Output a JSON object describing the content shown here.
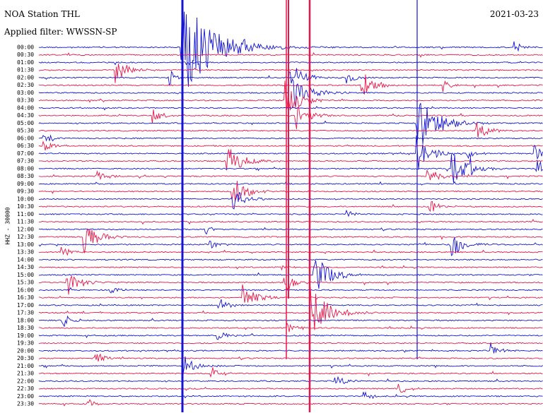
{
  "header": {
    "station": "NOA Station THL",
    "date": "2021-03-23",
    "filter": "Applied filter: WWSSN-SP"
  },
  "axis_label": "HHZ - 30000",
  "rows": [
    "00:00",
    "00:30",
    "01:00",
    "01:30",
    "02:00",
    "02:30",
    "03:00",
    "03:30",
    "04:00",
    "04:30",
    "05:00",
    "05:30",
    "06:00",
    "06:30",
    "07:00",
    "07:30",
    "08:00",
    "08:30",
    "09:00",
    "09:30",
    "10:00",
    "10:30",
    "11:00",
    "11:30",
    "12:00",
    "12:30",
    "13:00",
    "13:30",
    "14:00",
    "14:30",
    "15:00",
    "15:30",
    "16:00",
    "16:30",
    "17:00",
    "17:30",
    "18:00",
    "18:30",
    "19:00",
    "19:30",
    "20:00",
    "20:30",
    "21:00",
    "21:30",
    "22:00",
    "22:30",
    "23:00",
    "23:30"
  ]
}
